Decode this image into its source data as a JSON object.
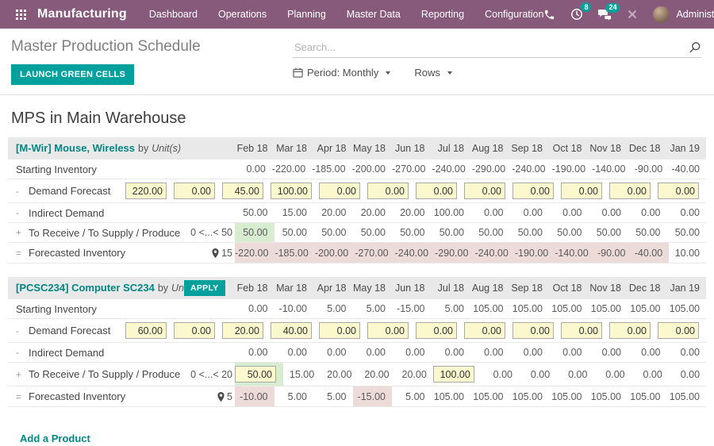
{
  "nav": {
    "brand": "Manufacturing",
    "items": [
      "Dashboard",
      "Operations",
      "Planning",
      "Master Data",
      "Reporting",
      "Configuration"
    ],
    "activity_count": "8",
    "message_count": "24",
    "user_name": "Administrator"
  },
  "control_panel": {
    "title": "Master Production Schedule",
    "launch_button": "LAUNCH GREEN CELLS",
    "search_placeholder": "Search...",
    "period_label": "Period: Monthly",
    "rows_label": "Rows"
  },
  "page": {
    "heading": "MPS in Main Warehouse",
    "add_product_label": "Add a Product"
  },
  "columns": [
    "Feb 18",
    "Mar 18",
    "Apr 18",
    "May 18",
    "Jun 18",
    "Jul 18",
    "Aug 18",
    "Sep 18",
    "Oct 18",
    "Nov 18",
    "Dec 18",
    "Jan 19"
  ],
  "row_labels": {
    "starting": {
      "prefix": "",
      "label": "Starting Inventory"
    },
    "demand": {
      "prefix": "-",
      "label": "Demand Forecast"
    },
    "indirect": {
      "prefix": "-",
      "label": "Indirect Demand"
    },
    "to_receive": {
      "prefix": "+",
      "label": "To Receive / To Supply / Produce"
    },
    "forecasted": {
      "prefix": "=",
      "label": "Forecasted Inventory"
    }
  },
  "products": [
    {
      "name": "[M-Wir] Mouse, Wireless",
      "by_text": "by",
      "uom": "Unit(s)",
      "apply_label": null,
      "supply_range": "0 <...< 50",
      "safety_stock": "15",
      "starting_inventory": [
        "0.00",
        "-220.00",
        "-185.00",
        "-200.00",
        "-270.00",
        "-240.00",
        "-290.00",
        "-240.00",
        "-190.00",
        "-140.00",
        "-90.00",
        "-40.00"
      ],
      "demand_forecast": [
        "220.00",
        "0.00",
        "45.00",
        "100.00",
        "0.00",
        "0.00",
        "0.00",
        "0.00",
        "0.00",
        "0.00",
        "0.00",
        "0.00"
      ],
      "indirect_demand": [
        "50.00",
        "15.00",
        "20.00",
        "20.00",
        "20.00",
        "100.00",
        "0.00",
        "0.00",
        "0.00",
        "0.00",
        "0.00",
        "0.00"
      ],
      "to_receive": [
        "50.00",
        "50.00",
        "50.00",
        "50.00",
        "50.00",
        "50.00",
        "50.00",
        "50.00",
        "50.00",
        "50.00",
        "50.00",
        "50.00"
      ],
      "to_receive_styles": [
        "green",
        "",
        "",
        "",
        "",
        "",
        "",
        "",
        "",
        "",
        "",
        ""
      ],
      "forecasted": [
        "-220.00",
        "-185.00",
        "-200.00",
        "-270.00",
        "-240.00",
        "-290.00",
        "-240.00",
        "-190.00",
        "-140.00",
        "-90.00",
        "-40.00",
        "10.00"
      ]
    },
    {
      "name": "[PCSC234] Computer SC234",
      "by_text": "by",
      "uom": "Unit(s)",
      "apply_label": "APPLY",
      "supply_range": "0 <...< 20",
      "safety_stock": "5",
      "starting_inventory": [
        "0.00",
        "-10.00",
        "5.00",
        "5.00",
        "-15.00",
        "5.00",
        "105.00",
        "105.00",
        "105.00",
        "105.00",
        "105.00",
        "105.00"
      ],
      "demand_forecast": [
        "60.00",
        "0.00",
        "20.00",
        "40.00",
        "0.00",
        "0.00",
        "0.00",
        "0.00",
        "0.00",
        "0.00",
        "0.00",
        "0.00"
      ],
      "indirect_demand": [
        "0.00",
        "0.00",
        "0.00",
        "0.00",
        "0.00",
        "0.00",
        "0.00",
        "0.00",
        "0.00",
        "0.00",
        "0.00",
        "0.00"
      ],
      "to_receive": [
        "50.00",
        "15.00",
        "20.00",
        "20.00",
        "20.00",
        "100.00",
        "0.00",
        "0.00",
        "0.00",
        "0.00",
        "0.00",
        "0.00"
      ],
      "to_receive_styles": [
        "input-green",
        "",
        "",
        "",
        "",
        "input",
        "",
        "",
        "",
        "",
        "",
        ""
      ],
      "forecasted": [
        "-10.00",
        "5.00",
        "5.00",
        "-15.00",
        "5.00",
        "105.00",
        "105.00",
        "105.00",
        "105.00",
        "105.00",
        "105.00",
        "105.00"
      ]
    }
  ],
  "colors": {
    "navbar": "#875A7B",
    "accent": "#00A09D",
    "link": "#008784",
    "input_yellow": "#fcf8cd",
    "cell_green": "#d8ecd1",
    "cell_red": "#eddbd9"
  }
}
